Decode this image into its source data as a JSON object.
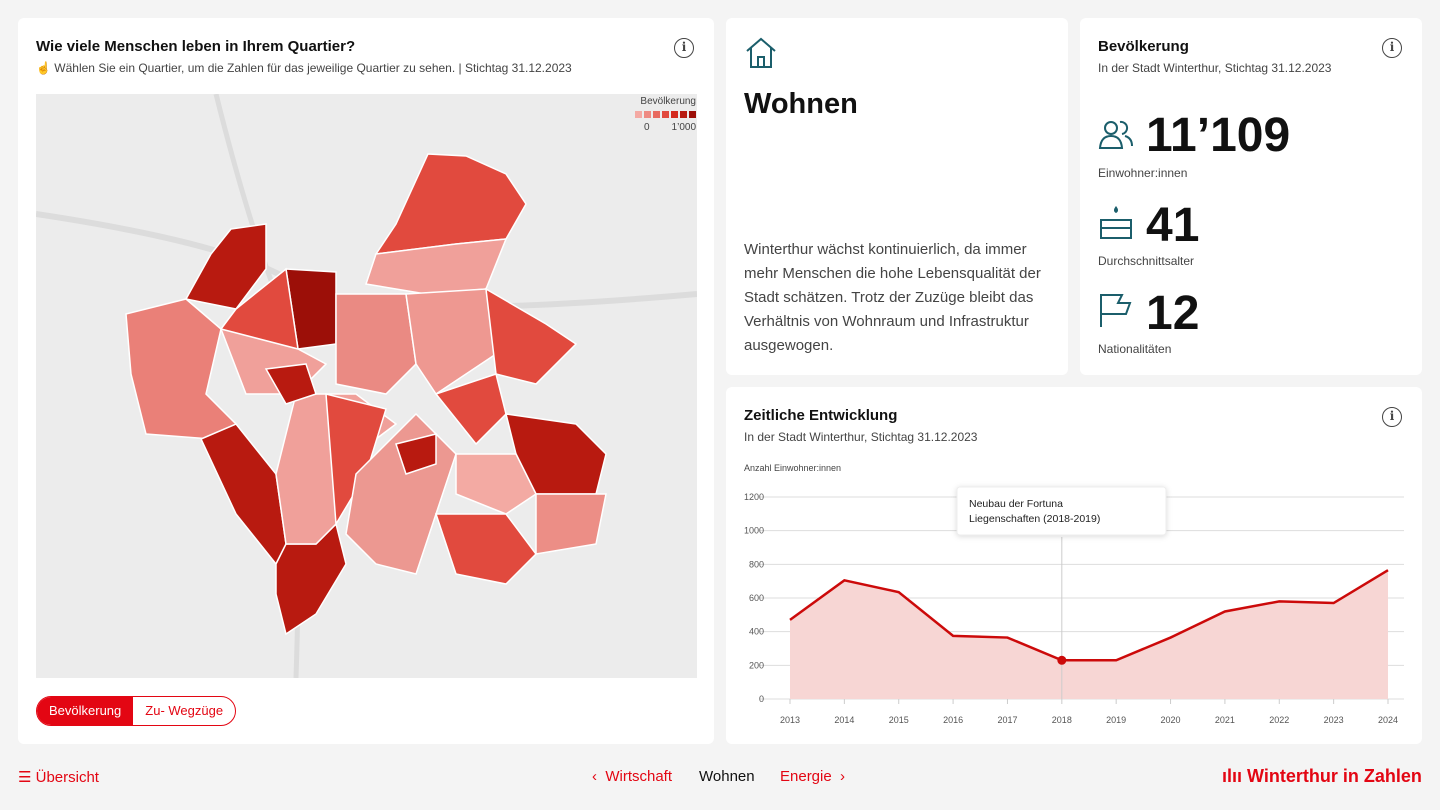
{
  "map_card": {
    "title": "Wie viele Menschen leben in Ihrem Quartier?",
    "hint": "Wählen Sie ein Quartier, um die Zahlen für das jeweilige Quartier zu sehen. | Stichtag 31.12.2023",
    "legend_title": "Bevölkerung",
    "legend_min": "0",
    "legend_max": "1’000",
    "legend_colors": [
      "#f4a9a3",
      "#ee8a82",
      "#e86a60",
      "#e14a3e",
      "#d42a1e",
      "#b81a10",
      "#9c0f08"
    ],
    "toggle": [
      "Bevölkerung",
      "Zu- Wegzüge"
    ]
  },
  "intro": {
    "icon": "house-icon",
    "title": "Wohnen",
    "text": "Winterthur wächst kontinuierlich, da immer mehr Menschen die hohe Lebensqualität der Stadt schätzen. Trotz der Zuzüge bleibt das Verhältnis von Wohnraum und Infrastruktur ausgewogen."
  },
  "stats": {
    "title": "Bevölkerung",
    "subtitle": "In der Stadt Winterthur, Stichtag 31.12.2023",
    "items": [
      {
        "icon": "people-icon",
        "value": "11’109",
        "label": "Einwohner:innen"
      },
      {
        "icon": "cake-icon",
        "value": "41",
        "label": "Durchschnittsalter"
      },
      {
        "icon": "flag-icon",
        "value": "12",
        "label": "Nationalitäten"
      }
    ]
  },
  "chart_card": {
    "title": "Zeitliche Entwicklung",
    "subtitle": "In der Stadt Winterthur, Stichtag 31.12.2023"
  },
  "chart_data": {
    "type": "area",
    "ylabel": "Anzahl Einwohner:innen",
    "x": [
      "2013",
      "2014",
      "2015",
      "2016",
      "2017",
      "2018",
      "2019",
      "2020",
      "2021",
      "2022",
      "2023",
      "2024"
    ],
    "values": [
      470,
      705,
      635,
      375,
      365,
      230,
      230,
      365,
      520,
      580,
      570,
      765
    ],
    "ylim": [
      0,
      1200
    ],
    "yticks": [
      0,
      200,
      400,
      600,
      800,
      1000,
      1200
    ],
    "grid": true,
    "line_color": "#cc0a0a",
    "fill_color": "#f7d6d4",
    "annotation": {
      "x": "2018",
      "text": [
        "Neubau der Fortuna",
        "Liegenschaften (2018-2019)"
      ]
    }
  },
  "footer": {
    "overview": "Übersicht",
    "prev": "Wirtschaft",
    "current": "Wohnen",
    "next": "Energie",
    "brand": "Winterthur in Zahlen"
  }
}
